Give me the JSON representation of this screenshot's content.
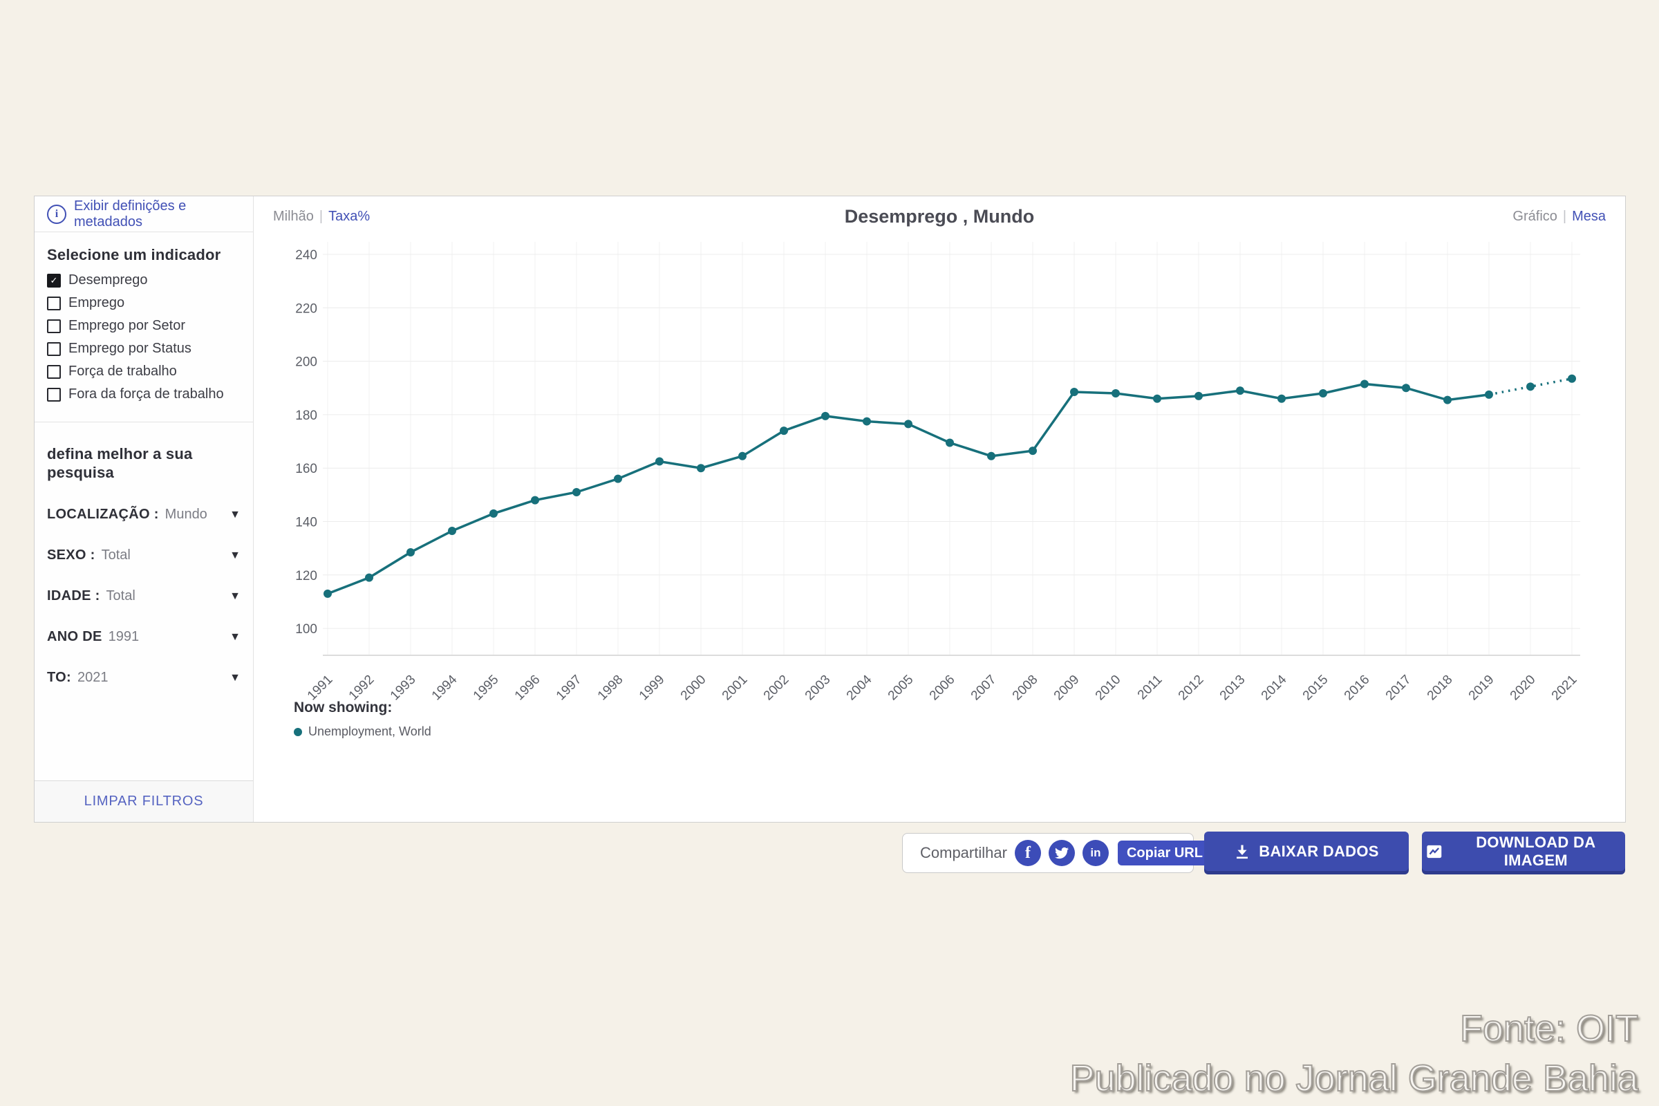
{
  "page": {
    "background": "#f5f1e8"
  },
  "sidebar": {
    "definitions_link": "Exibir definições e metadados",
    "indicator_heading": "Selecione um indicador",
    "indicators": [
      {
        "label": "Desemprego",
        "checked": true
      },
      {
        "label": "Emprego",
        "checked": false
      },
      {
        "label": "Emprego por Setor",
        "checked": false
      },
      {
        "label": "Emprego por Status",
        "checked": false
      },
      {
        "label": "Força de trabalho",
        "checked": false
      },
      {
        "label": "Fora da força de trabalho",
        "checked": false
      }
    ],
    "refine_heading": "defina melhor a sua pesquisa",
    "filters": [
      {
        "label": "LOCALIZAÇÃO :",
        "value": "Mundo"
      },
      {
        "label": "SEXO :",
        "value": "Total"
      },
      {
        "label": "IDADE :",
        "value": "Total"
      },
      {
        "label": "ANO DE",
        "value": "1991"
      },
      {
        "label": "TO:",
        "value": "2021"
      }
    ],
    "clear_filters_label": "LIMPAR FILTROS"
  },
  "chart_header": {
    "unit_selected": "Milhão",
    "unit_alternate": "Taxa%",
    "title": "Desemprego , Mundo",
    "view_selected": "Gráfico",
    "view_alternate": "Mesa"
  },
  "legend": {
    "heading": "Now showing:",
    "series_label": "Unemployment, World"
  },
  "share": {
    "label": "Compartilhar",
    "icons": [
      "facebook-icon",
      "twitter-icon",
      "linkedin-icon"
    ],
    "copy_url_label": "Copiar URL"
  },
  "actions": {
    "download_data_label": "BAIXAR DADOS",
    "download_image_label": "DOWNLOAD DA IMAGEM"
  },
  "watermark": {
    "line1": "Fonte: OIT",
    "line2": "Publicado no Jornal Grande Bahia"
  },
  "chart_data": {
    "type": "line",
    "title": "Desemprego , Mundo",
    "unit": "Milhão",
    "x": [
      1991,
      1992,
      1993,
      1994,
      1995,
      1996,
      1997,
      1998,
      1999,
      2000,
      2001,
      2002,
      2003,
      2004,
      2005,
      2006,
      2007,
      2008,
      2009,
      2010,
      2011,
      2012,
      2013,
      2014,
      2015,
      2016,
      2017,
      2018,
      2019,
      2020,
      2021
    ],
    "series": [
      {
        "name": "Unemployment, World",
        "color": "#17707b",
        "values": [
          113,
          119,
          128.5,
          136.5,
          143,
          148,
          151,
          156,
          162.5,
          160,
          164.5,
          174,
          179.5,
          177.5,
          176.5,
          169.5,
          164.5,
          166.5,
          188.5,
          188,
          186,
          187,
          189,
          186,
          188,
          191.5,
          190,
          185.5,
          187.5,
          190.5,
          193.5
        ],
        "projected_from_index": 28
      }
    ],
    "ylim": [
      90,
      240
    ],
    "yticks": [
      100,
      120,
      140,
      160,
      180,
      200,
      220,
      240
    ],
    "grid": true,
    "legend_position": "bottom-left"
  }
}
